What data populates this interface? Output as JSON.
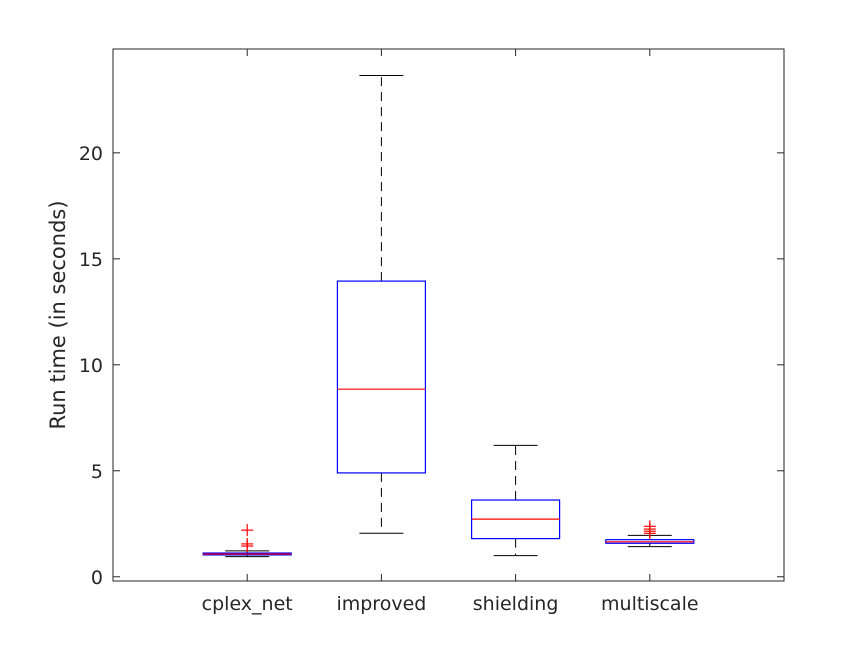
{
  "chart_data": {
    "type": "box",
    "ylabel": "Run time (in seconds)",
    "xlabel": "",
    "title": "",
    "ylim": [
      -0.2,
      24.9
    ],
    "yticks": [
      0,
      5,
      10,
      15,
      20
    ],
    "categories": [
      "cplex_net",
      "improved",
      "shielding",
      "multiscale"
    ],
    "boxes": [
      {
        "label": "cplex_net",
        "whisker_low": 0.95,
        "q1": 1.03,
        "median": 1.07,
        "q3": 1.12,
        "whisker_high": 1.22,
        "outliers": [
          1.45,
          1.55,
          2.2
        ]
      },
      {
        "label": "improved",
        "whisker_low": 2.05,
        "q1": 4.9,
        "median": 8.85,
        "q3": 13.95,
        "whisker_high": 23.65,
        "outliers": []
      },
      {
        "label": "shielding",
        "whisker_low": 1.0,
        "q1": 1.8,
        "median": 2.72,
        "q3": 3.62,
        "whisker_high": 6.2,
        "outliers": []
      },
      {
        "label": "multiscale",
        "whisker_low": 1.42,
        "q1": 1.58,
        "median": 1.65,
        "q3": 1.75,
        "whisker_high": 1.95,
        "outliers": [
          2.05,
          2.15,
          2.25,
          2.38
        ]
      }
    ],
    "colors": {
      "box": "#0000ff",
      "median": "#ff0000",
      "whisker": "#000000",
      "outlier": "#ff0000",
      "axis": "#262626"
    },
    "grid": false
  }
}
